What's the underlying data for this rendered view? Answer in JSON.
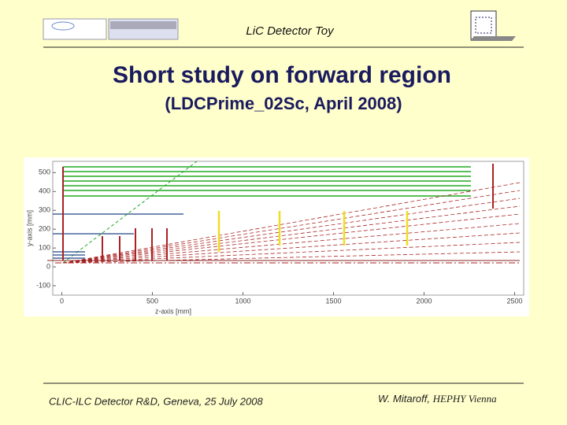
{
  "header": {
    "title": "LiC Detector Toy"
  },
  "slide": {
    "title": "Short study on forward region",
    "subtitle": "(LDCPrime_02Sc, April 2008)"
  },
  "plot": {
    "xlabel": "z-axis [mm]",
    "ylabel": "y-axis [mm]",
    "xlim": [
      -50,
      2550
    ],
    "ylim": [
      -150,
      560
    ],
    "xticks": [
      0,
      500,
      1000,
      1500,
      2000,
      2500
    ],
    "yticks": [
      -100,
      0,
      100,
      200,
      300,
      400,
      500
    ]
  },
  "footer": {
    "left": "CLIC-ILC Detector R&D, Geneva, 25 July 2008",
    "author": "W. Mitaroff,",
    "institute": "HEPHY Vienna"
  }
}
